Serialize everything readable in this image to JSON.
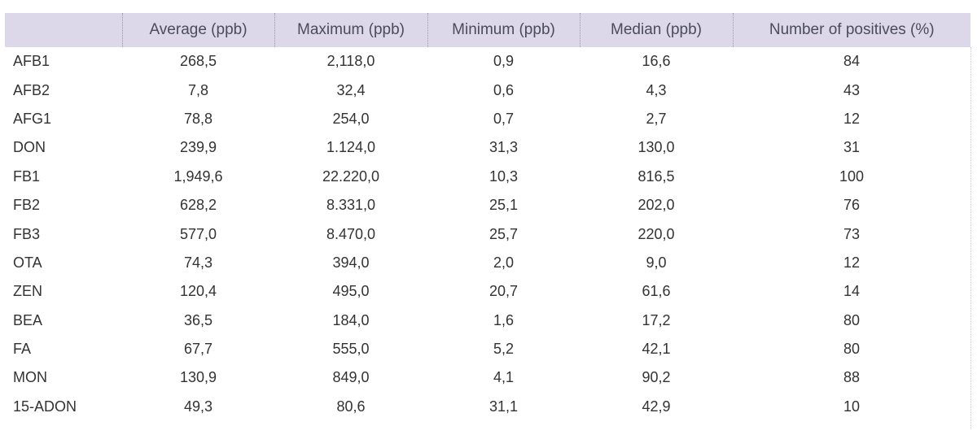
{
  "table": {
    "headers": [
      "",
      "Average (ppb)",
      "Maximum (ppb)",
      "Minimum (ppb)",
      "Median (ppb)",
      "Number of positives (%)"
    ],
    "rows": [
      [
        "AFB1",
        "268,5",
        "2,118,0",
        "0,9",
        "16,6",
        "84"
      ],
      [
        "AFB2",
        "7,8",
        "32,4",
        "0,6",
        "4,3",
        "43"
      ],
      [
        "AFG1",
        "78,8",
        "254,0",
        "0,7",
        "2,7",
        "12"
      ],
      [
        "DON",
        "239,9",
        "1.124,0",
        "31,3",
        "130,0",
        "31"
      ],
      [
        "FB1",
        "1,949,6",
        "22.220,0",
        "10,3",
        "816,5",
        "100"
      ],
      [
        "FB2",
        "628,2",
        "8.331,0",
        "25,1",
        "202,0",
        "76"
      ],
      [
        "FB3",
        "577,0",
        "8.470,0",
        "25,7",
        "220,0",
        "73"
      ],
      [
        "OTA",
        "74,3",
        "394,0",
        "2,0",
        "9,0",
        "12"
      ],
      [
        "ZEN",
        "120,4",
        "495,0",
        "20,7",
        "61,6",
        "14"
      ],
      [
        "BEA",
        "36,5",
        "184,0",
        "1,6",
        "17,2",
        "80"
      ],
      [
        "FA",
        "67,7",
        "555,0",
        "5,2",
        "42,1",
        "80"
      ],
      [
        "MON",
        "130,9",
        "849,0",
        "4,1",
        "90,2",
        "88"
      ],
      [
        "15-ADON",
        "49,3",
        "80,6",
        "31,1",
        "42,9",
        "10"
      ]
    ]
  },
  "colors": {
    "header_bg": "#dcd8ea",
    "header_text": "#4b4b5c",
    "body_text": "#333333"
  }
}
